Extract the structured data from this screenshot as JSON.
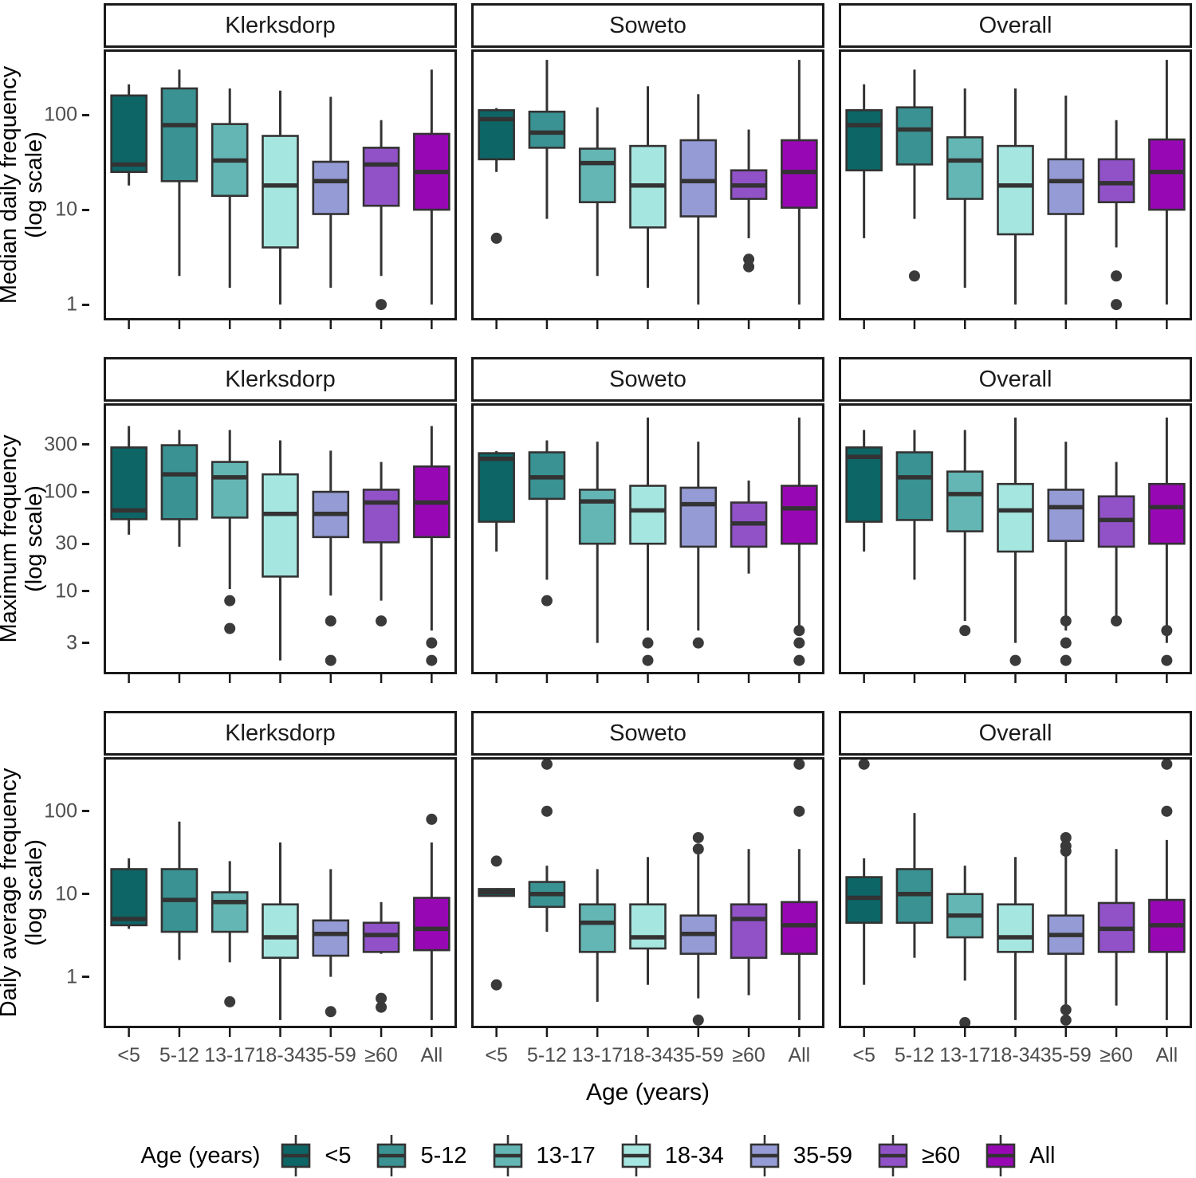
{
  "figure": {
    "facet_columns": [
      "Klerksdorp",
      "Soweto",
      "Overall"
    ],
    "age_groups": [
      "<5",
      "5-12",
      "13-17",
      "18-34",
      "35-59",
      "≥60",
      "All"
    ],
    "palette": [
      "#0D6566",
      "#3A9292",
      "#63B6B3",
      "#A6E6E1",
      "#959BD5",
      "#9152C8",
      "#9708B4"
    ],
    "box_stroke": "#333333",
    "outlier_color": "#3a3a3a",
    "panel_border_color": "#1a1a1a",
    "tick_label_color": "#4d4d4d",
    "x_axis_title": "Age (years)",
    "legend": {
      "title": "Age (years)"
    }
  },
  "chart_data": [
    {
      "type": "boxplot",
      "ylabel": "Median daily frequency\n(log scale)",
      "yticks": [
        1,
        10,
        100
      ],
      "ylim": [
        0.68,
        490
      ],
      "log_scale": true,
      "show_x_labels": false,
      "categories": [
        "<5",
        "5-12",
        "13-17",
        "18-34",
        "35-59",
        "≥60",
        "All"
      ],
      "panels": [
        {
          "facet": "Klerksdorp",
          "boxes": [
            {
              "group": "<5",
              "lo": 18,
              "q1": 25,
              "med": 30,
              "q3": 160,
              "hi": 210,
              "outliers": []
            },
            {
              "group": "5-12",
              "lo": 2,
              "q1": 20,
              "med": 78,
              "q3": 190,
              "hi": 300,
              "outliers": []
            },
            {
              "group": "13-17",
              "lo": 1.5,
              "q1": 14,
              "med": 33,
              "q3": 80,
              "hi": 190,
              "outliers": []
            },
            {
              "group": "18-34",
              "lo": 1,
              "q1": 4,
              "med": 18,
              "q3": 60,
              "hi": 180,
              "outliers": []
            },
            {
              "group": "35-59",
              "lo": 1.5,
              "q1": 9,
              "med": 20,
              "q3": 32,
              "hi": 155,
              "outliers": []
            },
            {
              "group": "≥60",
              "lo": 2,
              "q1": 11,
              "med": 30,
              "q3": 45,
              "hi": 88,
              "outliers": [
                1
              ]
            },
            {
              "group": "All",
              "lo": 1,
              "q1": 10,
              "med": 25,
              "q3": 63,
              "hi": 300,
              "outliers": []
            }
          ]
        },
        {
          "facet": "Soweto",
          "boxes": [
            {
              "group": "<5",
              "lo": 25,
              "q1": 34,
              "med": 90,
              "q3": 112,
              "hi": 118,
              "outliers": [
                5
              ]
            },
            {
              "group": "5-12",
              "lo": 8,
              "q1": 45,
              "med": 65,
              "q3": 108,
              "hi": 380,
              "outliers": []
            },
            {
              "group": "13-17",
              "lo": 2,
              "q1": 12,
              "med": 31,
              "q3": 44,
              "hi": 120,
              "outliers": []
            },
            {
              "group": "18-34",
              "lo": 1.5,
              "q1": 6.5,
              "med": 18,
              "q3": 47,
              "hi": 200,
              "outliers": []
            },
            {
              "group": "35-59",
              "lo": 1,
              "q1": 8.5,
              "med": 20,
              "q3": 54,
              "hi": 165,
              "outliers": []
            },
            {
              "group": "≥60",
              "lo": 5,
              "q1": 13,
              "med": 18,
              "q3": 26,
              "hi": 70,
              "outliers": [
                3,
                2.5
              ]
            },
            {
              "group": "All",
              "lo": 1,
              "q1": 10.5,
              "med": 25,
              "q3": 54,
              "hi": 380,
              "outliers": []
            }
          ]
        },
        {
          "facet": "Overall",
          "boxes": [
            {
              "group": "<5",
              "lo": 5,
              "q1": 26,
              "med": 78,
              "q3": 112,
              "hi": 210,
              "outliers": []
            },
            {
              "group": "5-12",
              "lo": 8,
              "q1": 30,
              "med": 70,
              "q3": 120,
              "hi": 300,
              "outliers": [
                2
              ]
            },
            {
              "group": "13-17",
              "lo": 1.5,
              "q1": 13,
              "med": 33,
              "q3": 58,
              "hi": 190,
              "outliers": []
            },
            {
              "group": "18-34",
              "lo": 1,
              "q1": 5.5,
              "med": 18,
              "q3": 47,
              "hi": 190,
              "outliers": []
            },
            {
              "group": "35-59",
              "lo": 1,
              "q1": 9,
              "med": 20,
              "q3": 34,
              "hi": 160,
              "outliers": []
            },
            {
              "group": "≥60",
              "lo": 4,
              "q1": 12,
              "med": 19,
              "q3": 34,
              "hi": 88,
              "outliers": [
                2,
                1
              ]
            },
            {
              "group": "All",
              "lo": 1,
              "q1": 10,
              "med": 25,
              "q3": 55,
              "hi": 380,
              "outliers": []
            }
          ]
        }
      ]
    },
    {
      "type": "boxplot",
      "ylabel": "Maximum frequency\n(log scale)",
      "yticks": [
        3,
        10,
        30,
        100,
        300
      ],
      "ylim": [
        1.45,
        780
      ],
      "log_scale": true,
      "show_x_labels": false,
      "categories": [
        "<5",
        "5-12",
        "13-17",
        "18-34",
        "35-59",
        "≥60",
        "All"
      ],
      "panels": [
        {
          "facet": "Klerksdorp",
          "boxes": [
            {
              "group": "<5",
              "lo": 37,
              "q1": 53,
              "med": 65,
              "q3": 280,
              "hi": 460,
              "outliers": []
            },
            {
              "group": "5-12",
              "lo": 28,
              "q1": 53,
              "med": 150,
              "q3": 295,
              "hi": 420,
              "outliers": []
            },
            {
              "group": "13-17",
              "lo": 10.5,
              "q1": 55,
              "med": 140,
              "q3": 200,
              "hi": 420,
              "outliers": [
                8,
                4.2
              ]
            },
            {
              "group": "18-34",
              "lo": 2,
              "q1": 14,
              "med": 60,
              "q3": 150,
              "hi": 330,
              "outliers": []
            },
            {
              "group": "35-59",
              "lo": 9,
              "q1": 35,
              "med": 60,
              "q3": 100,
              "hi": 260,
              "outliers": [
                5,
                2
              ]
            },
            {
              "group": "≥60",
              "lo": 8,
              "q1": 31,
              "med": 78,
              "q3": 105,
              "hi": 200,
              "outliers": [
                5
              ]
            },
            {
              "group": "All",
              "lo": 4,
              "q1": 35,
              "med": 78,
              "q3": 180,
              "hi": 460,
              "outliers": [
                3,
                2
              ]
            }
          ]
        },
        {
          "facet": "Soweto",
          "boxes": [
            {
              "group": "<5",
              "lo": 25,
              "q1": 50,
              "med": 215,
              "q3": 245,
              "hi": 258,
              "outliers": []
            },
            {
              "group": "5-12",
              "lo": 13,
              "q1": 85,
              "med": 140,
              "q3": 250,
              "hi": 330,
              "outliers": [
                8
              ]
            },
            {
              "group": "13-17",
              "lo": 3,
              "q1": 30,
              "med": 80,
              "q3": 105,
              "hi": 320,
              "outliers": []
            },
            {
              "group": "18-34",
              "lo": 4,
              "q1": 30,
              "med": 65,
              "q3": 115,
              "hi": 560,
              "outliers": [
                3,
                2
              ]
            },
            {
              "group": "35-59",
              "lo": 4,
              "q1": 28,
              "med": 75,
              "q3": 110,
              "hi": 320,
              "outliers": [
                3
              ]
            },
            {
              "group": "≥60",
              "lo": 15,
              "q1": 28,
              "med": 48,
              "q3": 78,
              "hi": 130,
              "outliers": []
            },
            {
              "group": "All",
              "lo": 4,
              "q1": 30,
              "med": 68,
              "q3": 115,
              "hi": 560,
              "outliers": [
                4,
                3,
                2
              ]
            }
          ]
        },
        {
          "facet": "Overall",
          "boxes": [
            {
              "group": "<5",
              "lo": 25,
              "q1": 50,
              "med": 225,
              "q3": 280,
              "hi": 420,
              "outliers": []
            },
            {
              "group": "5-12",
              "lo": 13,
              "q1": 52,
              "med": 140,
              "q3": 250,
              "hi": 420,
              "outliers": []
            },
            {
              "group": "13-17",
              "lo": 5,
              "q1": 40,
              "med": 95,
              "q3": 160,
              "hi": 420,
              "outliers": [
                4
              ]
            },
            {
              "group": "18-34",
              "lo": 3,
              "q1": 25,
              "med": 65,
              "q3": 120,
              "hi": 560,
              "outliers": [
                2
              ]
            },
            {
              "group": "35-59",
              "lo": 4,
              "q1": 32,
              "med": 70,
              "q3": 105,
              "hi": 320,
              "outliers": [
                5,
                3,
                2
              ]
            },
            {
              "group": "≥60",
              "lo": 5.5,
              "q1": 28,
              "med": 52,
              "q3": 90,
              "hi": 200,
              "outliers": [
                5
              ]
            },
            {
              "group": "All",
              "lo": 3,
              "q1": 30,
              "med": 70,
              "q3": 120,
              "hi": 560,
              "outliers": [
                4,
                2
              ]
            }
          ]
        }
      ]
    },
    {
      "type": "boxplot",
      "ylabel": "Daily average frequency\n(log scale)",
      "yticks": [
        1,
        10,
        100
      ],
      "ylim": [
        0.24,
        450
      ],
      "log_scale": true,
      "show_x_labels": true,
      "categories": [
        "<5",
        "5-12",
        "13-17",
        "18-34",
        "35-59",
        "≥60",
        "All"
      ],
      "panels": [
        {
          "facet": "Klerksdorp",
          "boxes": [
            {
              "group": "<5",
              "lo": 3.8,
              "q1": 4.2,
              "med": 5,
              "q3": 20,
              "hi": 27,
              "outliers": []
            },
            {
              "group": "5-12",
              "lo": 1.6,
              "q1": 3.5,
              "med": 8.5,
              "q3": 20,
              "hi": 75,
              "outliers": []
            },
            {
              "group": "13-17",
              "lo": 1.5,
              "q1": 3.5,
              "med": 8,
              "q3": 10.5,
              "hi": 25,
              "outliers": [
                0.5
              ]
            },
            {
              "group": "18-34",
              "lo": 0.3,
              "q1": 1.7,
              "med": 3,
              "q3": 7.5,
              "hi": 42,
              "outliers": []
            },
            {
              "group": "35-59",
              "lo": 1,
              "q1": 1.8,
              "med": 3.3,
              "q3": 4.8,
              "hi": 20,
              "outliers": [
                0.38
              ]
            },
            {
              "group": "≥60",
              "lo": 1.9,
              "q1": 2,
              "med": 3.2,
              "q3": 4.5,
              "hi": 8,
              "outliers": [
                0.55,
                0.43
              ]
            },
            {
              "group": "All",
              "lo": 0.3,
              "q1": 2.1,
              "med": 3.8,
              "q3": 9,
              "hi": 42,
              "outliers": [
                80
              ]
            }
          ]
        },
        {
          "facet": "Soweto",
          "boxes": [
            {
              "group": "<5",
              "lo": 9.3,
              "q1": 9.5,
              "med": 10.5,
              "q3": 11.5,
              "hi": 11.8,
              "outliers": [
                25,
                0.8
              ]
            },
            {
              "group": "5-12",
              "lo": 3.5,
              "q1": 7,
              "med": 10,
              "q3": 14,
              "hi": 22,
              "outliers": [
                370,
                100
              ]
            },
            {
              "group": "13-17",
              "lo": 0.5,
              "q1": 2,
              "med": 4.5,
              "q3": 7.5,
              "hi": 20,
              "outliers": []
            },
            {
              "group": "18-34",
              "lo": 0.8,
              "q1": 2.2,
              "med": 3,
              "q3": 7.5,
              "hi": 28,
              "outliers": []
            },
            {
              "group": "35-59",
              "lo": 0.55,
              "q1": 1.9,
              "med": 3.3,
              "q3": 5.5,
              "hi": 30,
              "outliers": [
                48,
                35,
                0.3
              ]
            },
            {
              "group": "≥60",
              "lo": 0.6,
              "q1": 1.7,
              "med": 5,
              "q3": 7.5,
              "hi": 35,
              "outliers": []
            },
            {
              "group": "All",
              "lo": 0.3,
              "q1": 1.9,
              "med": 4.2,
              "q3": 8,
              "hi": 35,
              "outliers": [
                370,
                100
              ]
            }
          ]
        },
        {
          "facet": "Overall",
          "boxes": [
            {
              "group": "<5",
              "lo": 0.8,
              "q1": 4.5,
              "med": 9,
              "q3": 16,
              "hi": 27,
              "outliers": [
                370
              ]
            },
            {
              "group": "5-12",
              "lo": 1.7,
              "q1": 4.5,
              "med": 10,
              "q3": 20,
              "hi": 95,
              "outliers": []
            },
            {
              "group": "13-17",
              "lo": 0.9,
              "q1": 3,
              "med": 5.5,
              "q3": 10,
              "hi": 22,
              "outliers": [
                0.28
              ]
            },
            {
              "group": "18-34",
              "lo": 0.3,
              "q1": 2,
              "med": 3,
              "q3": 7.5,
              "hi": 28,
              "outliers": []
            },
            {
              "group": "35-59",
              "lo": 0.45,
              "q1": 1.9,
              "med": 3.2,
              "q3": 5.5,
              "hi": 30,
              "outliers": [
                48,
                38,
                33,
                0.4,
                0.3
              ]
            },
            {
              "group": "≥60",
              "lo": 0.45,
              "q1": 2,
              "med": 3.8,
              "q3": 7.8,
              "hi": 35,
              "outliers": []
            },
            {
              "group": "All",
              "lo": 0.3,
              "q1": 2,
              "med": 4.2,
              "q3": 8.5,
              "hi": 45,
              "outliers": [
                370,
                100
              ]
            }
          ]
        }
      ]
    }
  ]
}
